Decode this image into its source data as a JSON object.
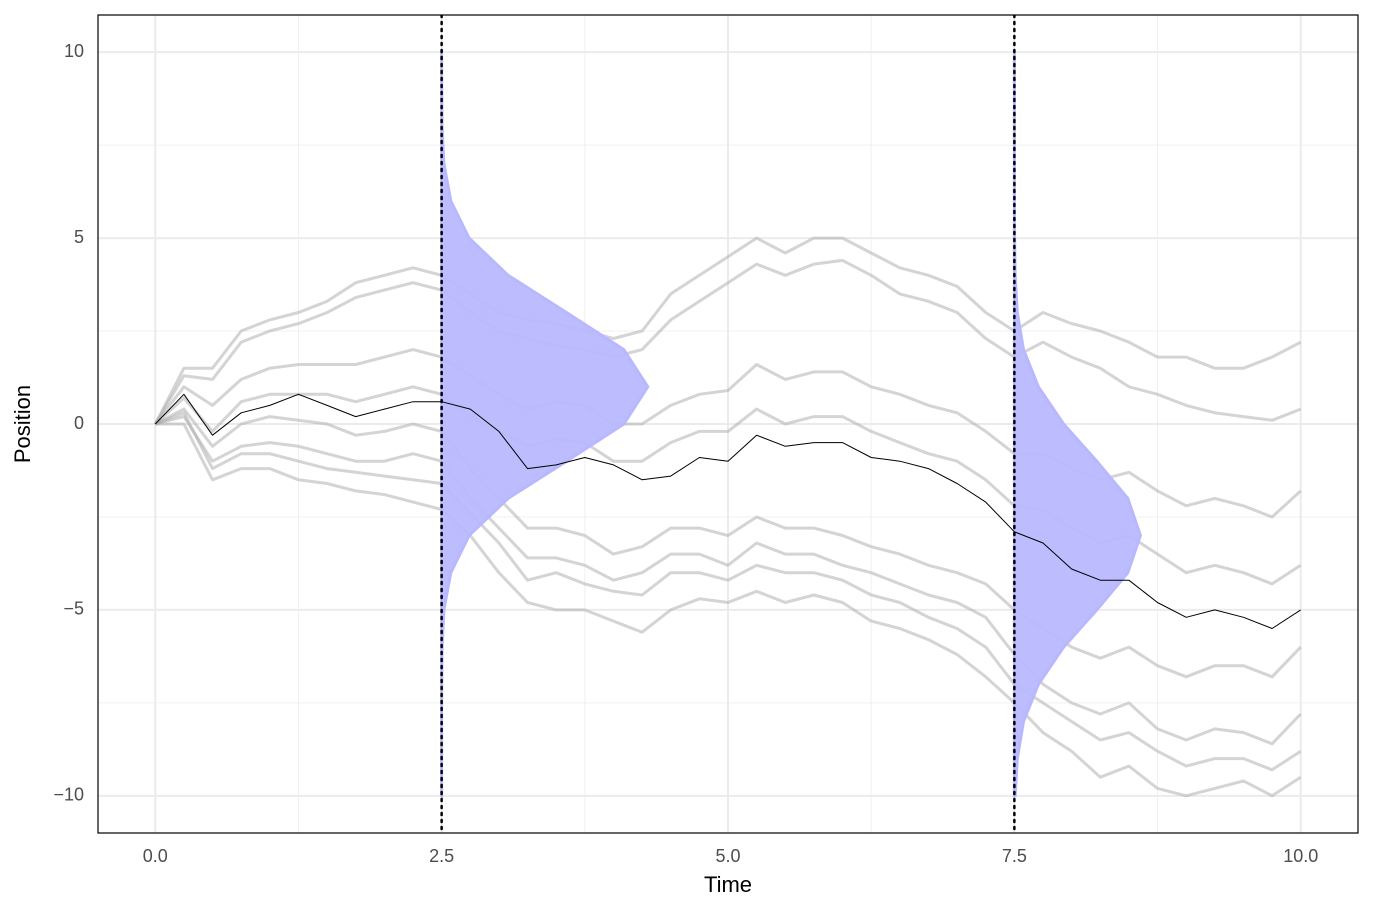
{
  "chart_data": {
    "type": "line",
    "xlabel": "Time",
    "ylabel": "Position",
    "xlim": [
      -0.5,
      10.5
    ],
    "ylim": [
      -11,
      11
    ],
    "xticks": [
      {
        "value": 0,
        "label": "0.0"
      },
      {
        "value": 2.5,
        "label": "2.5"
      },
      {
        "value": 5,
        "label": "5.0"
      },
      {
        "value": 7.5,
        "label": "7.5"
      },
      {
        "value": 10,
        "label": "10.0"
      }
    ],
    "yticks": [
      {
        "value": -10,
        "label": "−10"
      },
      {
        "value": -5,
        "label": "−5"
      },
      0,
      5,
      10
    ],
    "xminor": [
      1.25,
      3.75,
      6.25,
      8.75
    ],
    "yminor": [
      -7.5,
      -2.5,
      2.5,
      7.5
    ],
    "grid": true,
    "vlines": [
      2.5,
      7.5
    ],
    "x": [
      0,
      0.25,
      0.5,
      0.75,
      1,
      1.25,
      1.5,
      1.75,
      2,
      2.25,
      2.5,
      2.75,
      3,
      3.25,
      3.5,
      3.75,
      4,
      4.25,
      4.5,
      4.75,
      5,
      5.25,
      5.5,
      5.75,
      6,
      6.25,
      6.5,
      6.75,
      7,
      7.25,
      7.5,
      7.75,
      8,
      8.25,
      8.5,
      8.75,
      9,
      9.25,
      9.5,
      9.75,
      10
    ],
    "paths_color": "#a9a9a9",
    "paths": [
      [
        0,
        1.5,
        1.5,
        2.5,
        2.8,
        3.0,
        3.3,
        3.8,
        4.0,
        4.2,
        4.0,
        3.5,
        3.0,
        2.8,
        2.7,
        2.5,
        2.3,
        2.5,
        3.5,
        4.0,
        4.5,
        5.0,
        4.6,
        5.0,
        5.0,
        4.6,
        4.2,
        4.0,
        3.7,
        3.0,
        2.5,
        3.0,
        2.7,
        2.5,
        2.2,
        1.8,
        1.8,
        1.5,
        1.5,
        1.8,
        2.2
      ],
      [
        0,
        1.3,
        1.2,
        2.2,
        2.5,
        2.7,
        3.0,
        3.4,
        3.6,
        3.8,
        3.6,
        3.0,
        2.5,
        2.3,
        2.1,
        2.0,
        1.8,
        2.0,
        2.8,
        3.3,
        3.8,
        4.3,
        4.0,
        4.3,
        4.4,
        4.0,
        3.5,
        3.3,
        3.0,
        2.3,
        1.8,
        2.2,
        1.8,
        1.5,
        1.0,
        0.8,
        0.5,
        0.3,
        0.2,
        0.1,
        0.4
      ],
      [
        0,
        1.0,
        0.5,
        1.2,
        1.5,
        1.6,
        1.6,
        1.6,
        1.8,
        2.0,
        1.8,
        1.3,
        0.8,
        0.4,
        0.6,
        0.5,
        0.0,
        0.0,
        0.5,
        0.8,
        0.9,
        1.6,
        1.2,
        1.4,
        1.4,
        1.0,
        0.8,
        0.5,
        0.3,
        -0.2,
        -0.8,
        -0.8,
        -1.2,
        -1.5,
        -1.3,
        -1.8,
        -2.2,
        -2.0,
        -2.2,
        -2.5,
        -1.8
      ],
      [
        0,
        0.7,
        -0.2,
        0.6,
        0.8,
        0.8,
        0.8,
        0.6,
        0.8,
        1.0,
        0.8,
        0.2,
        -0.2,
        -0.6,
        -0.4,
        -0.5,
        -1.0,
        -1.0,
        -0.5,
        -0.2,
        -0.2,
        0.4,
        0.0,
        0.2,
        0.2,
        -0.2,
        -0.5,
        -0.8,
        -1.0,
        -1.5,
        -2.2,
        -2.3,
        -2.8,
        -3.2,
        -3.0,
        -3.5,
        -4.0,
        -3.8,
        -4.0,
        -4.3,
        -3.8
      ],
      [
        0,
        0.4,
        -0.6,
        0.0,
        0.2,
        0.1,
        0.0,
        -0.3,
        -0.2,
        0.0,
        -0.2,
        -1.2,
        -2.0,
        -2.8,
        -2.8,
        -3.0,
        -3.5,
        -3.3,
        -2.8,
        -2.8,
        -3.0,
        -2.5,
        -2.8,
        -2.8,
        -3.0,
        -3.3,
        -3.5,
        -3.8,
        -4.0,
        -4.3,
        -5.0,
        -5.5,
        -6.0,
        -6.3,
        -6.0,
        -6.5,
        -6.8,
        -6.5,
        -6.5,
        -6.8,
        -6.0
      ],
      [
        0,
        0.2,
        -1.0,
        -0.6,
        -0.5,
        -0.6,
        -0.8,
        -1.0,
        -1.0,
        -0.8,
        -1.0,
        -2.0,
        -2.8,
        -3.6,
        -3.6,
        -3.8,
        -4.2,
        -4.0,
        -3.5,
        -3.5,
        -3.8,
        -3.2,
        -3.5,
        -3.5,
        -3.8,
        -4.0,
        -4.3,
        -4.6,
        -4.8,
        -5.2,
        -6.2,
        -7.0,
        -7.5,
        -7.8,
        -7.5,
        -8.2,
        -8.5,
        -8.2,
        -8.3,
        -8.6,
        -7.8
      ],
      [
        0,
        0.3,
        -1.2,
        -0.8,
        -0.8,
        -1.0,
        -1.2,
        -1.3,
        -1.4,
        -1.5,
        -1.6,
        -2.4,
        -3.2,
        -4.2,
        -4.0,
        -4.3,
        -4.5,
        -4.6,
        -4.0,
        -4.0,
        -4.2,
        -3.8,
        -4.0,
        -4.0,
        -4.2,
        -4.6,
        -4.8,
        -5.2,
        -5.5,
        -6.0,
        -7.0,
        -7.5,
        -8.0,
        -8.5,
        -8.3,
        -8.8,
        -9.2,
        -9.0,
        -9.0,
        -9.3,
        -8.8
      ],
      [
        0,
        0.0,
        -1.5,
        -1.2,
        -1.2,
        -1.5,
        -1.6,
        -1.8,
        -1.9,
        -2.1,
        -2.3,
        -3.0,
        -4.0,
        -4.8,
        -5.0,
        -5.0,
        -5.3,
        -5.6,
        -5.0,
        -4.7,
        -4.8,
        -4.5,
        -4.8,
        -4.6,
        -4.8,
        -5.3,
        -5.5,
        -5.8,
        -6.2,
        -6.8,
        -7.5,
        -8.3,
        -8.8,
        -9.5,
        -9.2,
        -9.8,
        -10.0,
        -9.8,
        -9.6,
        -10.0,
        -9.5
      ]
    ],
    "highlight_color": "#000000",
    "highlight": [
      0,
      0.8,
      -0.3,
      0.3,
      0.5,
      0.8,
      0.5,
      0.2,
      0.4,
      0.6,
      0.6,
      0.4,
      -0.2,
      -1.2,
      -1.1,
      -0.9,
      -1.1,
      -1.5,
      -1.4,
      -0.9,
      -1.0,
      -0.3,
      -0.6,
      -0.5,
      -0.5,
      -0.9,
      -1.0,
      -1.2,
      -1.6,
      -2.1,
      -2.9,
      -3.2,
      -3.9,
      -4.2,
      -4.2,
      -4.8,
      -5.2,
      -5.0,
      -5.2,
      -5.5,
      -5.0
    ],
    "density_color": "#b8b8ff",
    "density_y": [
      -10,
      -9,
      -8,
      -7,
      -6,
      -5,
      -4,
      -3,
      -2,
      -1,
      0,
      1,
      2,
      3,
      4,
      5,
      6,
      7,
      8,
      9,
      10
    ],
    "densities": [
      {
        "at": 2.5,
        "widths": [
          0,
          0,
          0,
          0.001,
          0.004,
          0.02,
          0.08,
          0.24,
          0.58,
          1.09,
          1.59,
          1.8,
          1.59,
          1.09,
          0.58,
          0.24,
          0.08,
          0.02,
          0.004,
          0.001,
          0
        ]
      },
      {
        "at": 7.5,
        "widths": [
          0.007,
          0.026,
          0.08,
          0.21,
          0.43,
          0.72,
          0.99,
          1.1,
          0.99,
          0.72,
          0.43,
          0.21,
          0.08,
          0.026,
          0.007,
          0.002,
          0,
          0,
          0,
          0,
          0
        ]
      }
    ]
  }
}
